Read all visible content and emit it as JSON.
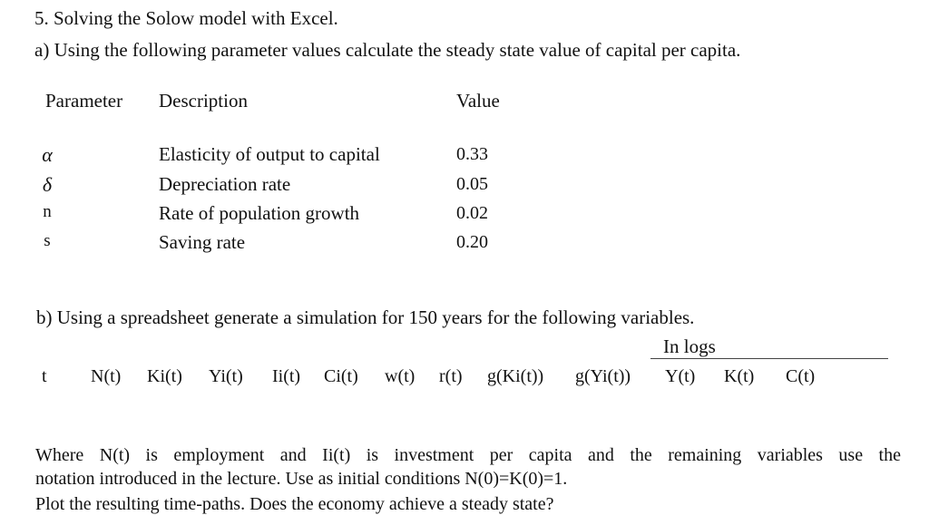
{
  "header": "5. Solving the Solow model with Excel.",
  "part_a": "a) Using the following parameter values calculate the steady state value of capital per capita.",
  "table": {
    "columns": [
      "Parameter",
      "Description",
      "Value"
    ],
    "rows": [
      {
        "parameter": "α",
        "description": "Elasticity of output to capital",
        "value": "0.33"
      },
      {
        "parameter": "δ",
        "description": "Depreciation rate",
        "value": "0.05"
      },
      {
        "parameter": "n",
        "description": "Rate of population growth",
        "value": "0.02"
      },
      {
        "parameter": "s",
        "description": "Saving rate",
        "value": "0.20"
      }
    ]
  },
  "part_b": "b) Using a spreadsheet generate a simulation for 150 years for the following variables.",
  "in_logs_label": "In logs",
  "variables": [
    "t",
    "N(t)",
    "Ki(t)",
    "Yi(t)",
    "Ii(t)",
    "Ci(t)",
    "w(t)",
    "r(t)",
    "g(Ki(t))",
    "g(Yi(t))",
    "Y(t)",
    "K(t)",
    "C(t)"
  ],
  "paragraph": {
    "line1": "Where N(t) is employment and Ii(t) is investment per capita and the remaining variables use the",
    "line2": "notation introduced in the lecture. Use as initial conditions N(0)=K(0)=1.",
    "line3": "Plot the resulting time-paths. Does the economy achieve a steady state?"
  }
}
